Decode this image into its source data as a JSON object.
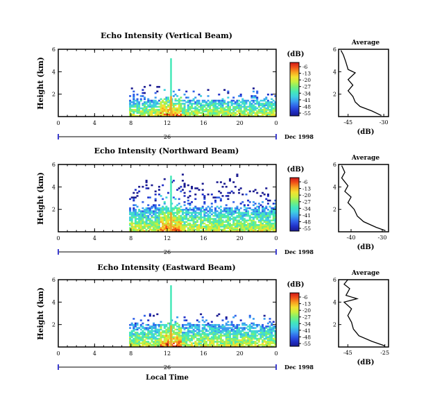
{
  "figure": {
    "date_label": "Dec 1998",
    "day_label": "26",
    "bottom_axis_label": "Local Time",
    "y_axis_label": "Height (km)",
    "colorbar_title": "(dB)",
    "avg_title": "Average",
    "avg_xlabel": "(dB)",
    "colorbar_ticks": [
      "-6",
      "-13",
      "-20",
      "-27",
      "-34",
      "-41",
      "-48",
      "-55"
    ],
    "colormap": [
      "#1a1a90",
      "#2030c8",
      "#2f5fe8",
      "#3a9cf0",
      "#3fd0e0",
      "#45e8b8",
      "#7ef070",
      "#c8f040",
      "#f4e030",
      "#f8a020",
      "#f05018",
      "#d01818"
    ]
  },
  "chart_data": [
    {
      "type": "heatmap",
      "title": "Echo Intensity (Vertical Beam)",
      "beam": "vertical",
      "xlabel": "",
      "ylabel": "Height (km)",
      "xlim": [
        0,
        24
      ],
      "ylim": [
        0,
        6
      ],
      "x_ticks": [
        "0",
        "4",
        "8",
        "12",
        "16",
        "20",
        "0"
      ],
      "y_ticks": [
        "2",
        "4",
        "6"
      ],
      "color_range_db": [
        -55,
        -6
      ],
      "echo_start_hour": 7.8,
      "echo_end_hour": 24,
      "echo_top_km": 1.5,
      "spike_hour": 12.4,
      "spike_top_km": 5.2,
      "sparse_top_km": 2.9,
      "average_profile": {
        "title": "Average",
        "xlabel": "(dB)",
        "x_ticks": [
          "-45",
          "-30"
        ],
        "y_ticks": [
          "2",
          "4",
          "6"
        ],
        "xlim": [
          -49,
          -28
        ],
        "points": [
          [
            -31,
            0.1
          ],
          [
            -35,
            0.5
          ],
          [
            -40,
            0.9
          ],
          [
            -42,
            1.3
          ],
          [
            -43,
            1.8
          ],
          [
            -45,
            2.3
          ],
          [
            -43,
            2.8
          ],
          [
            -45,
            3.3
          ],
          [
            -42,
            3.9
          ],
          [
            -45,
            4.2
          ],
          [
            -46,
            4.9
          ],
          [
            -47,
            5.5
          ],
          [
            -48,
            5.9
          ]
        ]
      }
    },
    {
      "type": "heatmap",
      "title": "Echo Intensity (Northward Beam)",
      "beam": "northward",
      "xlabel": "",
      "ylabel": "Height (km)",
      "xlim": [
        0,
        24
      ],
      "ylim": [
        0,
        6
      ],
      "x_ticks": [
        "0",
        "4",
        "8",
        "12",
        "16",
        "20",
        "0"
      ],
      "y_ticks": [
        "2",
        "4",
        "6"
      ],
      "color_range_db": [
        -55,
        -6
      ],
      "echo_start_hour": 7.8,
      "echo_end_hour": 24,
      "echo_top_km": 2.2,
      "spike_hour": 12.4,
      "spike_top_km": 5.0,
      "sparse_top_km": 5.4,
      "average_profile": {
        "title": "Average",
        "xlabel": "(dB)",
        "x_ticks": [
          "-40",
          "-30"
        ],
        "y_ticks": [
          "2",
          "4",
          "6"
        ],
        "xlim": [
          -44,
          -28
        ],
        "points": [
          [
            -29,
            0.1
          ],
          [
            -32,
            0.4
          ],
          [
            -36,
            0.9
          ],
          [
            -38,
            1.4
          ],
          [
            -39,
            2.0
          ],
          [
            -41,
            2.6
          ],
          [
            -40,
            3.1
          ],
          [
            -42,
            3.6
          ],
          [
            -41,
            4.1
          ],
          [
            -43,
            4.8
          ],
          [
            -42,
            5.3
          ],
          [
            -43,
            5.9
          ]
        ]
      }
    },
    {
      "type": "heatmap",
      "title": "Echo Intensity (Eastward Beam)",
      "beam": "eastward",
      "xlabel": "Local Time",
      "ylabel": "Height (km)",
      "xlim": [
        0,
        24
      ],
      "ylim": [
        0,
        6
      ],
      "x_ticks": [
        "0",
        "4",
        "8",
        "12",
        "16",
        "20",
        "0"
      ],
      "y_ticks": [
        "2",
        "4",
        "6"
      ],
      "color_range_db": [
        -55,
        -6
      ],
      "echo_start_hour": 7.8,
      "echo_end_hour": 24,
      "echo_top_km": 2.0,
      "spike_hour": 12.4,
      "spike_top_km": 5.5,
      "sparse_top_km": 3.0,
      "average_profile": {
        "title": "Average",
        "xlabel": "(dB)",
        "x_ticks": [
          "-45",
          "-25"
        ],
        "y_ticks": [
          "2",
          "4",
          "6"
        ],
        "xlim": [
          -50,
          -23
        ],
        "points": [
          [
            -25,
            0.1
          ],
          [
            -32,
            0.5
          ],
          [
            -39,
            1.0
          ],
          [
            -42,
            1.6
          ],
          [
            -43,
            2.2
          ],
          [
            -45,
            2.8
          ],
          [
            -43,
            3.4
          ],
          [
            -47,
            4.0
          ],
          [
            -40,
            4.3
          ],
          [
            -46,
            4.6
          ],
          [
            -44,
            5.2
          ],
          [
            -47,
            5.6
          ],
          [
            -45,
            6.0
          ]
        ]
      }
    }
  ]
}
